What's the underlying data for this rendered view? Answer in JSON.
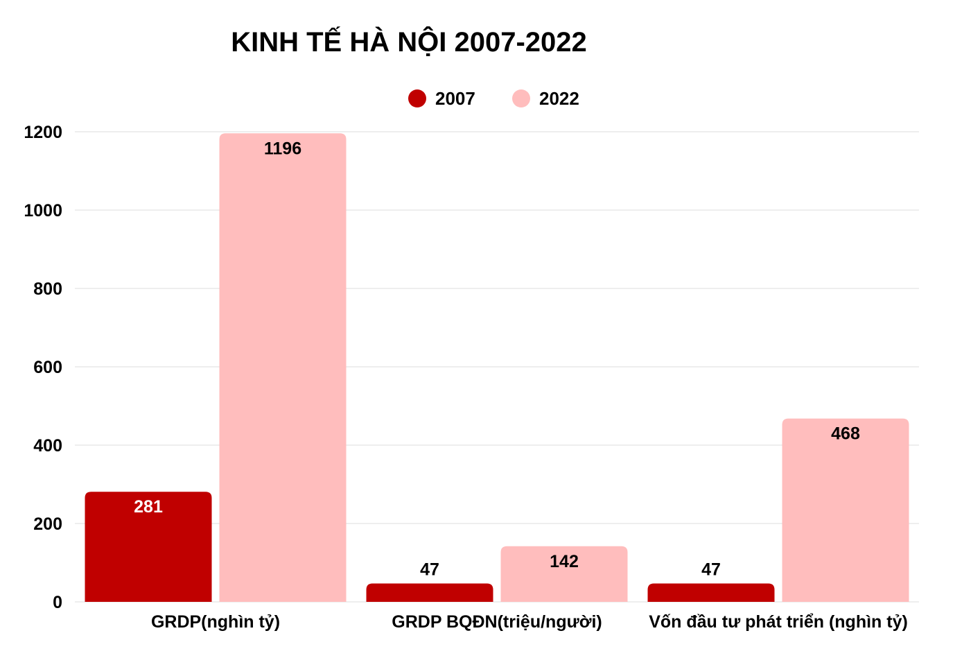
{
  "chart_data": {
    "type": "bar",
    "title": "KINH TẾ HÀ NỘI 2007-2022",
    "xlabel": "",
    "ylabel": "",
    "ylim": [
      0,
      1200
    ],
    "yticks": [
      0,
      200,
      400,
      600,
      800,
      1000,
      1200
    ],
    "grid": true,
    "legend_position": "top-center",
    "categories": [
      "GRDP(nghìn tỷ)",
      "GRDP BQĐN(triệu/người)",
      "Vốn đầu tư phát triển (nghìn tỷ)"
    ],
    "series": [
      {
        "name": "2007",
        "color": "#c00000",
        "label_color": "#ffffff",
        "values": [
          281,
          47,
          47
        ]
      },
      {
        "name": "2022",
        "color": "#ffbdbd",
        "label_color": "#000000",
        "values": [
          1196,
          142,
          468
        ]
      }
    ]
  }
}
